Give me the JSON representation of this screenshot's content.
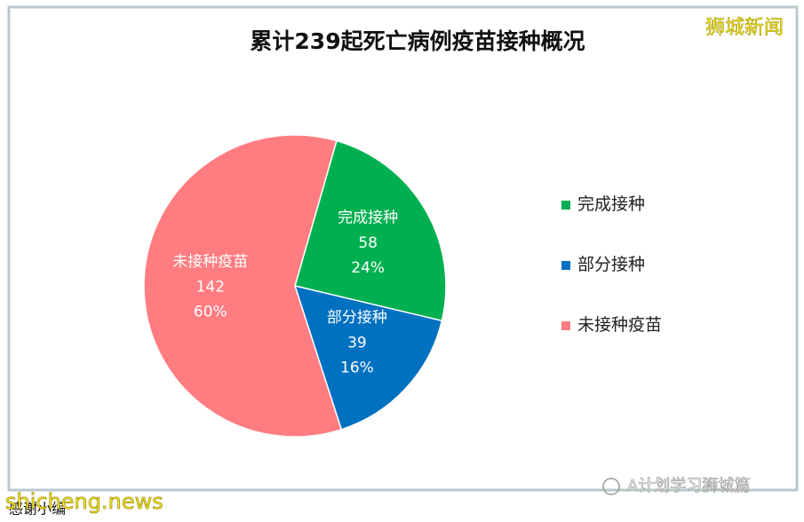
{
  "chart_data": {
    "type": "pie",
    "title": "累计239起死亡病例疫苗接种概况",
    "categories": [
      "完成接种",
      "部分接种",
      "未接种疫苗"
    ],
    "values": [
      58,
      39,
      142
    ],
    "percent_labels": [
      "24%",
      "16%",
      "60%"
    ],
    "colors": [
      "#00b050",
      "#0070c0",
      "#ff7c80"
    ],
    "legend": "right"
  },
  "watermarks": {
    "top_right": "狮城新闻",
    "bottom_left": "shicheng.news",
    "bottom_right": "A计划学习狮城篇",
    "bottom_caption": "感谢小编"
  }
}
